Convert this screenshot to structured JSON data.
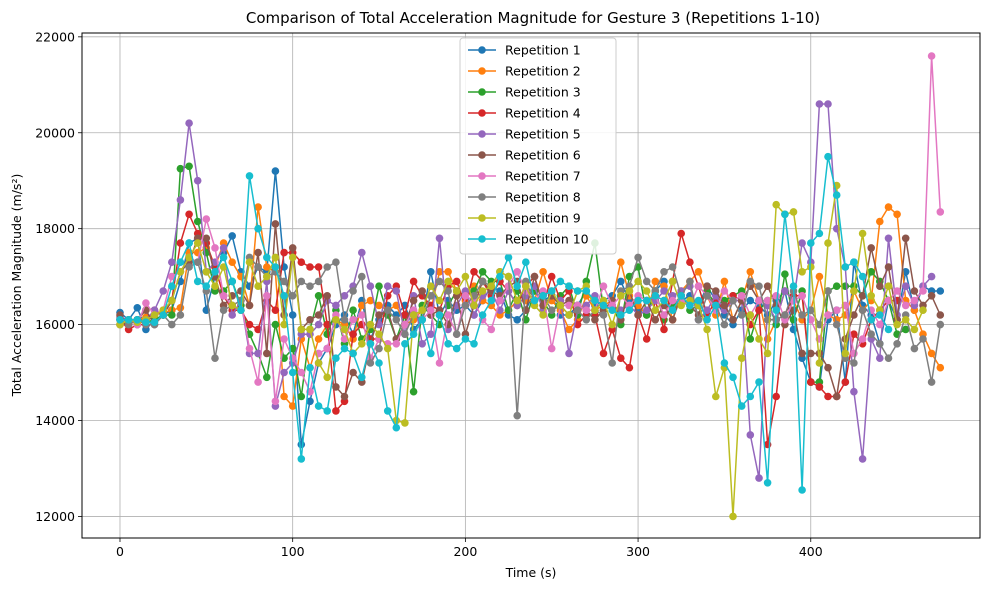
{
  "chart_data": {
    "type": "line",
    "title": "Comparison of Total Acceleration Magnitude for Gesture 3 (Repetitions 1-10)",
    "xlabel": "Time (s)",
    "ylabel": "Total Acceleration Magnitude (m/s²)",
    "xlim": [
      -22,
      498
    ],
    "ylim": [
      11550,
      22080
    ],
    "xticks": [
      0,
      100,
      200,
      300,
      400
    ],
    "yticks": [
      12000,
      14000,
      16000,
      18000,
      20000,
      22000
    ],
    "grid": true,
    "legend_position": "top-center",
    "x_step": 5,
    "series": [
      {
        "name": "Repetition 1",
        "color": "#1f77b4",
        "values": [
          16250,
          16100,
          16350,
          15900,
          16100,
          16200,
          16300,
          16900,
          17700,
          17800,
          16300,
          17000,
          17500,
          17850,
          17100,
          16800,
          17200,
          17100,
          19200,
          17200,
          16200,
          13500,
          14400,
          15200,
          15500,
          16000,
          16200,
          15800,
          16500,
          15700,
          16100,
          16400,
          16200,
          16400,
          15900,
          16100,
          17100,
          16200,
          16500,
          16300,
          16400,
          16200,
          16500,
          16800,
          16700,
          16200,
          16100,
          16300,
          16700,
          16500,
          16600,
          16200,
          16200,
          16400,
          16700,
          16400,
          16500,
          16600,
          16900,
          16500,
          16300,
          16200,
          16700,
          16900,
          16400,
          16500,
          16600,
          16400,
          16800,
          16500,
          16200,
          16000,
          16300,
          16500,
          16400,
          16200,
          16500,
          16700,
          15900,
          15300,
          14800,
          14700,
          16100,
          16300,
          14800,
          17300,
          16400,
          16200,
          15600,
          16500,
          16100,
          17100,
          16300,
          16800,
          16700,
          16700
        ]
      },
      {
        "name": "Repetition 2",
        "color": "#ff7f0e",
        "values": [
          16000,
          16050,
          16100,
          16150,
          16200,
          16250,
          16300,
          16350,
          17500,
          17500,
          17600,
          17200,
          17700,
          17300,
          17000,
          16400,
          18450,
          17200,
          17100,
          14500,
          14300,
          15700,
          15100,
          15700,
          16000,
          16100,
          16000,
          15700,
          16400,
          16500,
          16400,
          16300,
          16400,
          16000,
          16100,
          16300,
          16300,
          17100,
          17100,
          16700,
          16500,
          16800,
          16500,
          16400,
          16200,
          16300,
          16500,
          16500,
          16500,
          17100,
          16500,
          16300,
          15900,
          16100,
          16600,
          16300,
          16400,
          16500,
          17300,
          16600,
          16400,
          16200,
          16900,
          16800,
          16100,
          16700,
          16900,
          17100,
          16600,
          16200,
          16900,
          16100,
          16500,
          17100,
          16500,
          15700,
          16100,
          16700,
          16500,
          16100,
          16300,
          17000,
          16200,
          16100,
          16200,
          16700,
          16300,
          16500,
          18150,
          18450,
          18300,
          16500,
          16300,
          15800,
          15400,
          15100
        ]
      },
      {
        "name": "Repetition 3",
        "color": "#2ca02c",
        "values": [
          16000,
          16050,
          16100,
          16050,
          16100,
          16200,
          16200,
          19250,
          19300,
          18150,
          17500,
          16700,
          16700,
          16900,
          16400,
          15800,
          15400,
          14900,
          16000,
          15300,
          15500,
          14500,
          15900,
          16600,
          15800,
          16300,
          15600,
          16300,
          15700,
          15900,
          16800,
          16200,
          15700,
          16200,
          14600,
          16400,
          16200,
          16000,
          16400,
          16700,
          16600,
          16700,
          17100,
          16900,
          16900,
          16300,
          16700,
          16100,
          16700,
          16500,
          16200,
          16600,
          16800,
          16200,
          16900,
          17700,
          16300,
          16400,
          16000,
          17000,
          17200,
          16200,
          16700,
          16100,
          16400,
          16600,
          16300,
          16400,
          16700,
          16400,
          16500,
          16600,
          16700,
          15700,
          16300,
          16500,
          16000,
          17050,
          16100,
          16700,
          14800,
          14800,
          16700,
          16800,
          16800,
          16800,
          16600,
          17100,
          16900,
          16500,
          15800,
          15900
        ]
      },
      {
        "name": "Repetition 4",
        "color": "#d62728",
        "values": [
          16100,
          15900,
          16000,
          16000,
          16300,
          16200,
          16500,
          17700,
          18300,
          17900,
          17700,
          17200,
          16600,
          16300,
          16300,
          16000,
          15900,
          16500,
          16300,
          17500,
          17500,
          17300,
          17200,
          17200,
          16000,
          14200,
          14400,
          15800,
          16000,
          15700,
          15700,
          16600,
          16800,
          16200,
          16900,
          16600,
          16400,
          16300,
          16800,
          16900,
          16400,
          17100,
          16900,
          16600,
          16900,
          16700,
          16400,
          16800,
          17000,
          16400,
          17000,
          16500,
          16700,
          16000,
          16200,
          16200,
          15400,
          15900,
          15300,
          15100,
          16200,
          15700,
          16500,
          15900,
          16900,
          17900,
          17300,
          16800,
          16200,
          16500,
          16300,
          16600,
          16500,
          16000,
          16300,
          13500,
          14500,
          16200,
          16600,
          16600,
          14800,
          14700,
          14500,
          14500,
          14800,
          15800,
          15600,
          16100,
          16300,
          16500,
          16500
        ]
      },
      {
        "name": "Repetition 5",
        "color": "#9467bd",
        "values": [
          16150,
          16100,
          16000,
          16100,
          16300,
          16700,
          17300,
          18600,
          20200,
          19000,
          17100,
          17300,
          17600,
          16200,
          16500,
          15400,
          15400,
          16900,
          14300,
          15000,
          15200,
          15800,
          15800,
          16000,
          16500,
          16400,
          16600,
          16800,
          17500,
          16800,
          16000,
          16800,
          16700,
          15800,
          16600,
          15600,
          15800,
          17800,
          15900,
          16400,
          16700,
          16200,
          16600,
          16700,
          16300,
          16700,
          16400,
          16600,
          16800,
          16300,
          16600,
          16500,
          15400,
          16300,
          16400,
          16600,
          16300,
          16400,
          16300,
          16400,
          16200,
          16300,
          16500,
          16700,
          16600,
          16700,
          16800,
          16100,
          16300,
          16600,
          16300,
          16500,
          16500,
          13700,
          12800,
          16400,
          16100,
          16700,
          16500,
          17700,
          17300,
          20600,
          20600,
          18000,
          17200,
          14600,
          13200,
          15700,
          15300,
          17800,
          16200,
          16800,
          16400,
          16800,
          17000
        ]
      },
      {
        "name": "Repetition 6",
        "color": "#8c564b",
        "values": [
          16200,
          16000,
          16100,
          16300,
          16000,
          16200,
          16500,
          17100,
          17300,
          17800,
          17800,
          17000,
          16400,
          16600,
          16700,
          16400,
          17500,
          15400,
          18100,
          16200,
          17600,
          15900,
          16100,
          16200,
          16600,
          14700,
          14500,
          15000,
          14800,
          15600,
          16200,
          16300,
          15700,
          16000,
          16500,
          16700,
          16200,
          16300,
          16000,
          16600,
          15800,
          16400,
          16900,
          16700,
          16600,
          16800,
          16900,
          16300,
          17000,
          16400,
          16600,
          16400,
          16500,
          16400,
          16300,
          16100,
          16300,
          16500,
          16100,
          16700,
          16200,
          16500,
          16100,
          16400,
          16100,
          16600,
          16400,
          16200,
          16800,
          16700,
          16400,
          16100,
          16500,
          16800,
          16500,
          16800,
          16400,
          16000,
          16300,
          15400,
          15400,
          15400,
          15100,
          14500,
          15700,
          16200,
          16600,
          17600,
          16800,
          17200,
          16100,
          17800,
          16700,
          16400,
          16600,
          16200
        ]
      },
      {
        "name": "Repetition 7",
        "color": "#e377c2",
        "values": [
          16000,
          16100,
          16000,
          16450,
          16200,
          16300,
          17000,
          17100,
          17400,
          17300,
          18200,
          17600,
          16600,
          16400,
          16500,
          15500,
          14800,
          16600,
          14400,
          15700,
          15300,
          15000,
          14600,
          15400,
          15500,
          16200,
          15700,
          16100,
          16200,
          15300,
          15700,
          15600,
          15600,
          16000,
          16300,
          16100,
          16300,
          15200,
          16200,
          15800,
          16600,
          16500,
          16100,
          15900,
          16500,
          16800,
          17100,
          16700,
          16500,
          16700,
          15500,
          16400,
          16400,
          16400,
          16300,
          16300,
          16800,
          16400,
          16600,
          16400,
          16600,
          16500,
          16600,
          16200,
          16500,
          16500,
          16400,
          16800,
          16600,
          16300,
          16700,
          16500,
          16600,
          16200,
          16500,
          16500,
          16600,
          16100,
          16500,
          16600,
          16100,
          15700,
          16200,
          16300,
          16400,
          15400,
          15700,
          16300,
          16000,
          16500,
          16700,
          16400,
          16500,
          16700,
          21600,
          18350
        ]
      },
      {
        "name": "Repetition 8",
        "color": "#7f7f7f",
        "values": [
          16100,
          16000,
          16100,
          16000,
          16000,
          16200,
          16000,
          16200,
          17200,
          17300,
          16700,
          15300,
          16300,
          16400,
          16500,
          17400,
          17200,
          17000,
          17100,
          16900,
          16600,
          16900,
          16800,
          16900,
          17200,
          17300,
          16100,
          16700,
          17000,
          15200,
          15500,
          16300,
          16100,
          15800,
          16200,
          16100,
          16600,
          16900,
          16700,
          15800,
          16400,
          16600,
          16900,
          16800,
          17100,
          17000,
          14100,
          16900,
          16500,
          16600,
          16300,
          16400,
          16200,
          16300,
          16100,
          16300,
          16200,
          15200,
          16700,
          16800,
          17400,
          16900,
          16700,
          17100,
          17200,
          16600,
          16900,
          16100,
          16600,
          16400,
          16000,
          16500,
          16200,
          16900,
          16800,
          16100,
          16100,
          16200,
          16700,
          16200,
          16300,
          16000,
          16700,
          16000,
          15300,
          15200,
          16300,
          15800,
          15600,
          15300,
          15600,
          16200,
          15500,
          15700,
          14800,
          16000
        ]
      },
      {
        "name": "Repetition 9",
        "color": "#bcbd22",
        "values": [
          16000,
          16100,
          16050,
          16100,
          16200,
          16300,
          16500,
          17100,
          17400,
          17700,
          17100,
          16800,
          17200,
          16400,
          16300,
          17300,
          16800,
          17000,
          17400,
          16000,
          17400,
          15900,
          15900,
          15200,
          14900,
          16100,
          15900,
          15400,
          15600,
          16000,
          15800,
          15500,
          14000,
          13950,
          16200,
          16300,
          16800,
          16500,
          16900,
          16700,
          17000,
          16400,
          16700,
          16800,
          17100,
          17000,
          16500,
          16800,
          16400,
          16200,
          16700,
          16400,
          16200,
          16700,
          16800,
          16300,
          16500,
          16000,
          16600,
          16700,
          16900,
          16700,
          16300,
          16500,
          16900,
          16400,
          16500,
          16400,
          15900,
          14500,
          15100,
          12000,
          15300,
          16200,
          15700,
          15400,
          18500,
          18300,
          18350,
          17100,
          17200,
          15200,
          17700,
          18900,
          15400,
          16700,
          17900,
          16600,
          16300,
          16800,
          16000,
          16100,
          15900,
          16300
        ]
      },
      {
        "name": "Repetition 10",
        "color": "#17becf",
        "values": [
          16100,
          16100,
          16100,
          16050,
          16050,
          16200,
          16800,
          17300,
          17700,
          16900,
          16800,
          17100,
          17400,
          16900,
          16300,
          19100,
          18000,
          17400,
          17200,
          16600,
          15000,
          13200,
          15100,
          14300,
          14200,
          15300,
          15500,
          15400,
          14900,
          15600,
          15200,
          14200,
          13850,
          15600,
          15800,
          16100,
          15400,
          16200,
          15600,
          15500,
          15700,
          15600,
          16200,
          16500,
          17000,
          17400,
          16800,
          17300,
          16500,
          16600,
          16700,
          16900,
          16800,
          16700,
          16700,
          16500,
          16400,
          16300,
          16200,
          16300,
          16500,
          16500,
          16600,
          16500,
          16300,
          16600,
          16400,
          16500,
          16100,
          16400,
          15200,
          14900,
          14300,
          14500,
          14800,
          12700,
          16300,
          18300,
          16800,
          12550,
          17700,
          17900,
          19500,
          18700,
          17200,
          17300,
          17000,
          16100,
          16200,
          15900
        ]
      }
    ]
  }
}
